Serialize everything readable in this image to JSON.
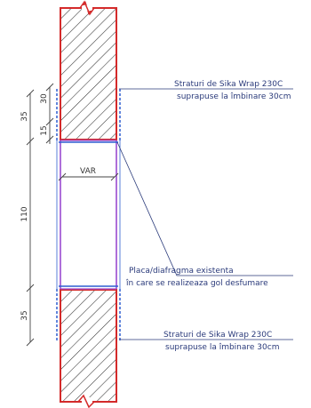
{
  "labels": {
    "top_note_line1": "Straturi de Sika Wrap 230C",
    "top_note_line2": "suprapuse la îmbinare 30cm",
    "var": "VAR",
    "slab_note_line1": "Placa/diafragma existenta",
    "slab_note_line2": "în care se realizeaza gol desfumare",
    "bottom_note_line1": "Straturi de Sika Wrap 230C",
    "bottom_note_line2": "suprapuse la îmbinare 30cm"
  },
  "dimensions": {
    "top_total": "35",
    "top_upper": "30",
    "top_lower": "15",
    "middle": "110",
    "bottom": "35"
  },
  "colors": {
    "wall_outline": "#d42a2a",
    "opening_outline": "#9a4ad0",
    "wrap": "#2e5fd0",
    "hatch": "#333333",
    "dimension": "#444444"
  }
}
